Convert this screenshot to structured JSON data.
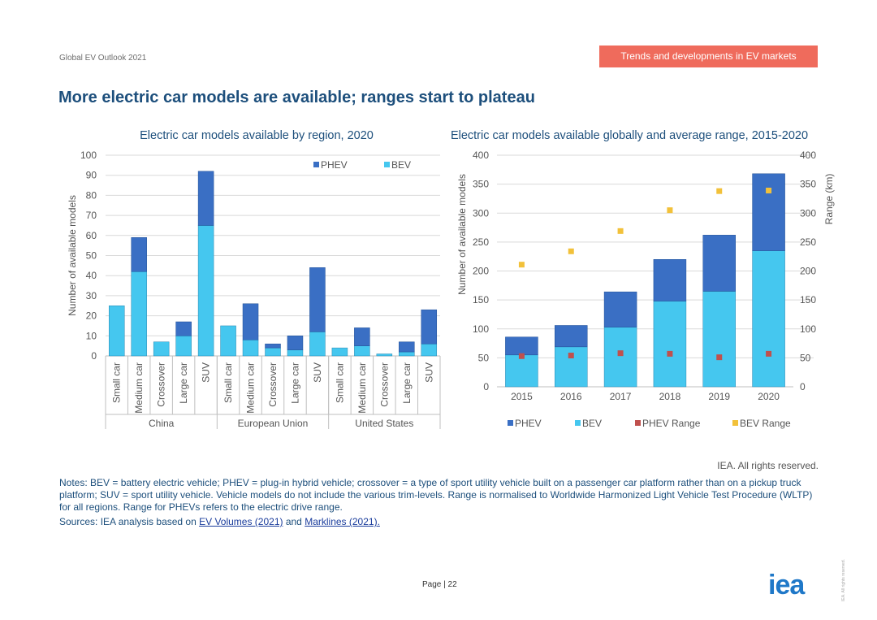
{
  "header": {
    "report": "Global EV Outlook 2021",
    "section": "Trends and developments in EV markets"
  },
  "title": "More electric car models are available; ranges start to plateau",
  "colors": {
    "phev": "#3a6fc4",
    "bev": "#45c7ef",
    "phev_range": "#c0504d",
    "bev_range": "#f2c13a",
    "axis_text": "#555555",
    "grid": "#d9d9d9"
  },
  "chart_data": [
    {
      "type": "bar",
      "stacked": true,
      "title": "Electric car models available by region, 2020",
      "ylabel": "Number of available models",
      "ylim": [
        0,
        100
      ],
      "yticks": [
        0,
        10,
        20,
        30,
        40,
        50,
        60,
        70,
        80,
        90,
        100
      ],
      "groups": [
        {
          "name": "China",
          "categories": [
            "Small car",
            "Medium car",
            "Crossover",
            "Large car",
            "SUV"
          ]
        },
        {
          "name": "European Union",
          "categories": [
            "Small car",
            "Medium car",
            "Crossover",
            "Large car",
            "SUV"
          ]
        },
        {
          "name": "United States",
          "categories": [
            "Small car",
            "Medium car",
            "Crossover",
            "Large car",
            "SUV"
          ]
        }
      ],
      "series": [
        {
          "name": "BEV",
          "values": [
            25,
            42,
            7,
            10,
            65,
            15,
            8,
            4,
            3,
            12,
            4,
            5,
            1,
            2,
            6
          ]
        },
        {
          "name": "PHEV",
          "values": [
            0,
            17,
            0,
            7,
            27,
            0,
            18,
            2,
            7,
            32,
            0,
            9,
            0,
            5,
            17
          ]
        }
      ],
      "legend": [
        "PHEV",
        "BEV"
      ],
      "grid": true
    },
    {
      "type": "bar",
      "stacked": true,
      "title": "Electric car models available globally and average range, 2015-2020",
      "ylabel": "Number of available models",
      "y2label": "Range (km)",
      "ylim": [
        0,
        400
      ],
      "y2lim": [
        0,
        400
      ],
      "yticks": [
        0,
        50,
        100,
        150,
        200,
        250,
        300,
        350,
        400
      ],
      "categories": [
        "2015",
        "2016",
        "2017",
        "2018",
        "2019",
        "2020"
      ],
      "series": [
        {
          "name": "BEV",
          "values": [
            55,
            69,
            103,
            148,
            165,
            235
          ]
        },
        {
          "name": "PHEV",
          "values": [
            31,
            37,
            61,
            72,
            97,
            133
          ]
        }
      ],
      "points": [
        {
          "name": "PHEV Range",
          "values": [
            53,
            54,
            58,
            57,
            51,
            57
          ]
        },
        {
          "name": "BEV Range",
          "values": [
            211,
            234,
            269,
            305,
            338,
            339
          ]
        }
      ],
      "legend": [
        "PHEV",
        "BEV",
        "PHEV Range",
        "BEV Range"
      ],
      "grid": true
    }
  ],
  "rights": "IEA. All rights reserved.",
  "notes": "Notes: BEV = battery electric vehicle; PHEV = plug-in hybrid vehicle; crossover = a type of sport utility vehicle built on a passenger car platform rather than on a pickup truck platform; SUV = sport utility vehicle. Vehicle models do not include the various trim-levels. Range is normalised to Worldwide Harmonized Light Vehicle Test Procedure (WLTP) for all regions. Range for PHEVs refers to the electric drive range.",
  "sources": {
    "prefix": "Sources: IEA analysis based on ",
    "link1": "EV Volumes (2021)",
    "mid": " and ",
    "link2": "Marklines (2021)."
  },
  "footer": {
    "page": "Page | 22",
    "logo": "iea",
    "side_mark": "IEA. All rights reserved."
  }
}
